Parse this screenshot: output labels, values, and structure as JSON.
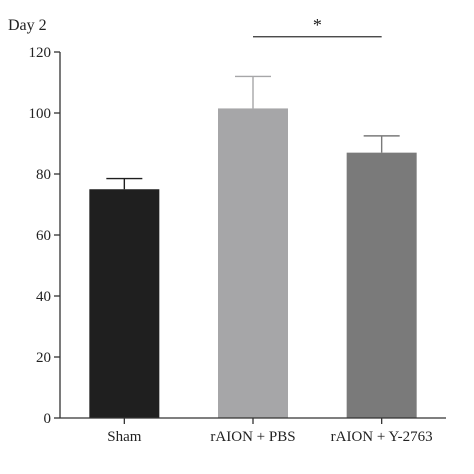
{
  "chart_data": {
    "type": "bar",
    "title": "Day 2",
    "xlabel": "",
    "ylabel": "",
    "categories": [
      "Sham",
      "rAION + PBS",
      "rAION + Y-2763"
    ],
    "values": [
      75,
      101.5,
      87
    ],
    "errors": [
      3.5,
      10.5,
      5.5
    ],
    "colors": [
      "#1f1f1f",
      "#a6a6a8",
      "#7a7a7a"
    ],
    "ylim": [
      0,
      120
    ],
    "yticks": [
      0,
      20,
      40,
      60,
      80,
      100,
      120
    ],
    "grid": false,
    "legend": "none",
    "significance": {
      "label": "*",
      "from_category": "rAION + PBS",
      "to_category": "rAION + Y-2763",
      "value": 125
    }
  }
}
